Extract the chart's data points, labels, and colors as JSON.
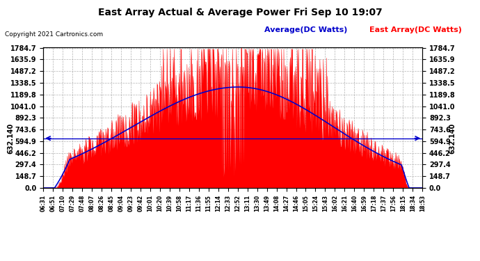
{
  "title": "East Array Actual & Average Power Fri Sep 10 19:07",
  "copyright": "Copyright 2021 Cartronics.com",
  "legend_average": "Average(DC Watts)",
  "legend_east": "East Array(DC Watts)",
  "yticks": [
    0.0,
    148.7,
    297.4,
    446.2,
    594.9,
    743.6,
    892.3,
    1041.0,
    1189.8,
    1338.5,
    1487.2,
    1635.9,
    1784.7
  ],
  "ymax": 1784.7,
  "ymin": 0.0,
  "hline_y": 632.14,
  "hline_label": "632.140",
  "bg_color": "#ffffff",
  "fill_color": "#ff0000",
  "avg_line_color": "#0000cc",
  "east_line_color": "#ff0000",
  "grid_color": "#aaaaaa",
  "title_color": "#000000",
  "copyright_color": "#000000",
  "time_labels": [
    "06:31",
    "06:51",
    "07:10",
    "07:29",
    "07:48",
    "08:07",
    "08:26",
    "08:45",
    "09:04",
    "09:23",
    "09:42",
    "10:01",
    "10:20",
    "10:39",
    "10:58",
    "11:17",
    "11:36",
    "11:55",
    "12:14",
    "12:33",
    "12:52",
    "13:11",
    "13:30",
    "13:49",
    "14:08",
    "14:27",
    "14:46",
    "15:05",
    "15:24",
    "15:43",
    "16:02",
    "16:21",
    "16:40",
    "16:59",
    "17:18",
    "17:37",
    "17:56",
    "18:15",
    "18:34",
    "18:53"
  ]
}
